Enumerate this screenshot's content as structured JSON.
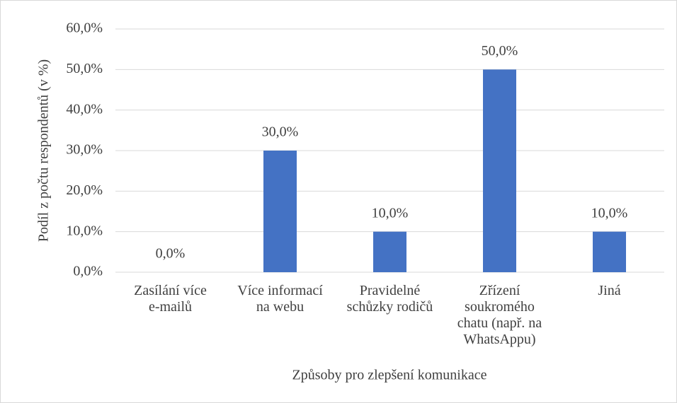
{
  "chart_data": {
    "type": "bar",
    "x_label": "Způsoby pro zlepšení komunikace",
    "y_label": "Podíl z počtu respondentů (v %)",
    "categories": [
      "Zasílání více\ne-mailů",
      "Více informací\nna webu",
      "Pravidelné\nschůzky rodičů",
      "Zřízení\nsoukromého\nchatu (např. na\nWhatsAppu)",
      "Jiná"
    ],
    "values": [
      0,
      30,
      10,
      50,
      10
    ],
    "value_labels": [
      "0,0%",
      "30,0%",
      "10,0%",
      "50,0%",
      "10,0%"
    ],
    "color": "#4472c4",
    "ylim": [
      0,
      60
    ],
    "yticks": [
      {
        "value": 0,
        "label": "0,0%"
      },
      {
        "value": 10,
        "label": "10,0%"
      },
      {
        "value": 20,
        "label": "20,0%"
      },
      {
        "value": 30,
        "label": "30,0%"
      },
      {
        "value": 40,
        "label": "40,0%"
      },
      {
        "value": 50,
        "label": "50,0%"
      },
      {
        "value": 60,
        "label": "60,0%"
      }
    ],
    "grid": true
  }
}
